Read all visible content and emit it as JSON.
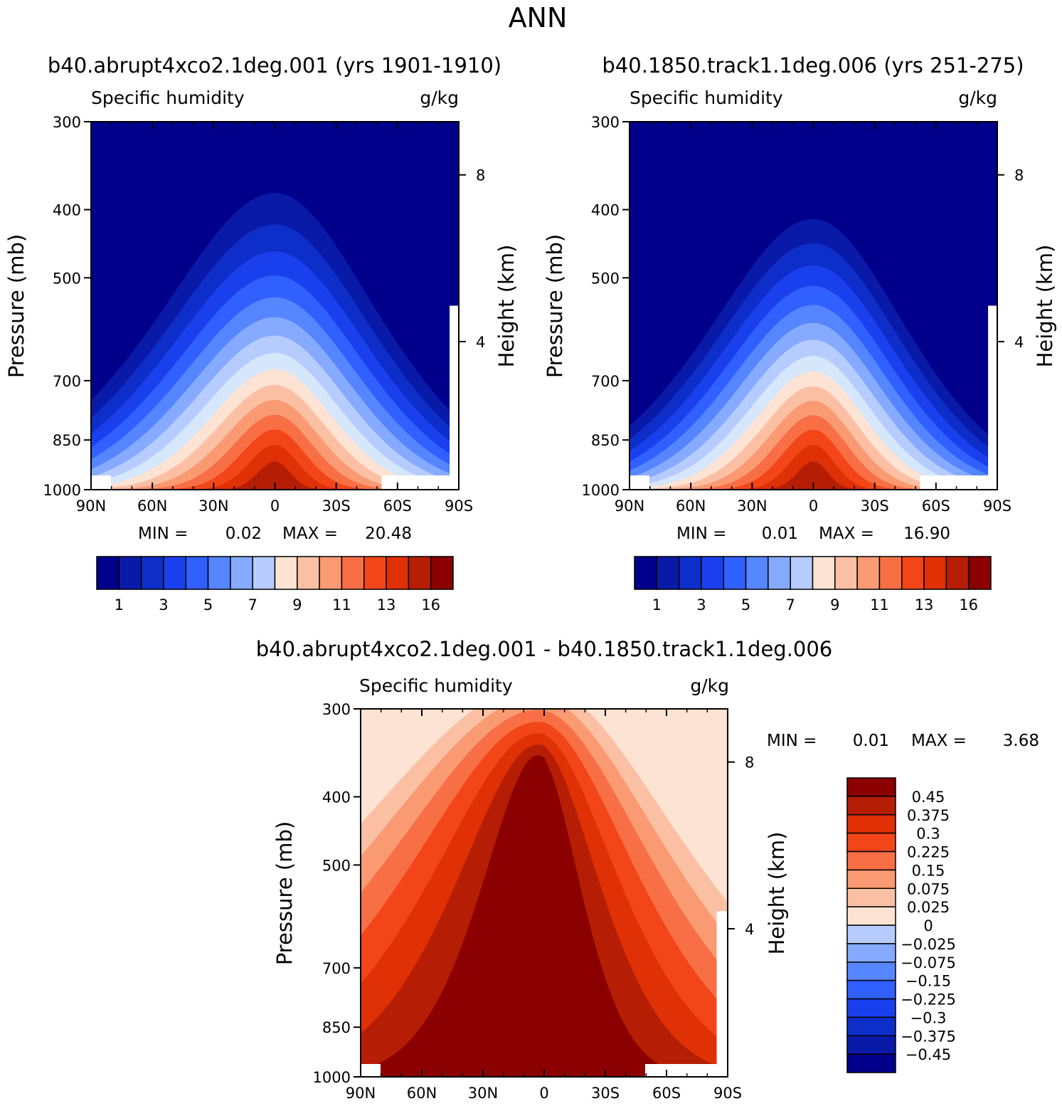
{
  "page_title": "ANN",
  "chart_data": [
    {
      "type": "heatmap",
      "subtype": "filled-contour",
      "title": "b40.abrupt4xco2.1deg.001 (yrs 1901-1910)",
      "subtitle_left": "Specific humidity",
      "subtitle_right": "g/kg",
      "xlabel": "",
      "ylabel": "Pressure (mb)",
      "ylabel_right": "Height (km)",
      "x_tick_labels": [
        "90N",
        "60N",
        "30N",
        "0",
        "30S",
        "60S",
        "90S"
      ],
      "x_range": [
        90,
        -90
      ],
      "y_tick_labels": [
        "300",
        "400",
        "500",
        "700",
        "850",
        "1000"
      ],
      "y_range": [
        300,
        1000
      ],
      "y_right_tick_labels": [
        "8",
        "4"
      ],
      "min_label": "MIN =",
      "min_value": "0.02",
      "max_label": "MAX =",
      "max_value": "20.48",
      "min": 0.02,
      "max": 20.48,
      "colorbar_orientation": "horizontal",
      "colorbar_labels": [
        "1",
        "3",
        "5",
        "7",
        "9",
        "11",
        "13",
        "16"
      ],
      "contour_bands": 16,
      "peak_latitude": 0,
      "peak_pressure": 1000
    },
    {
      "type": "heatmap",
      "subtype": "filled-contour",
      "title": "b40.1850.track1.1deg.006 (yrs 251-275)",
      "subtitle_left": "Specific humidity",
      "subtitle_right": "g/kg",
      "xlabel": "",
      "ylabel": "Pressure (mb)",
      "ylabel_right": "Height (km)",
      "x_tick_labels": [
        "90N",
        "60N",
        "30N",
        "0",
        "30S",
        "60S",
        "90S"
      ],
      "x_range": [
        90,
        -90
      ],
      "y_tick_labels": [
        "300",
        "400",
        "500",
        "700",
        "850",
        "1000"
      ],
      "y_range": [
        300,
        1000
      ],
      "y_right_tick_labels": [
        "8",
        "4"
      ],
      "min_label": "MIN =",
      "min_value": "0.01",
      "max_label": "MAX =",
      "max_value": "16.90",
      "min": 0.01,
      "max": 16.9,
      "colorbar_orientation": "horizontal",
      "colorbar_labels": [
        "1",
        "3",
        "5",
        "7",
        "9",
        "11",
        "13",
        "16"
      ],
      "contour_bands": 16,
      "peak_latitude": 0,
      "peak_pressure": 1000
    },
    {
      "type": "heatmap",
      "subtype": "filled-contour-difference",
      "title": "b40.abrupt4xco2.1deg.001 - b40.1850.track1.1deg.006",
      "subtitle_left": "Specific humidity",
      "subtitle_right": "g/kg",
      "xlabel": "",
      "ylabel": "Pressure (mb)",
      "ylabel_right": "Height (km)",
      "x_tick_labels": [
        "90N",
        "60N",
        "30N",
        "0",
        "30S",
        "60S",
        "90S"
      ],
      "x_range": [
        90,
        -90
      ],
      "y_tick_labels": [
        "300",
        "400",
        "500",
        "700",
        "850",
        "1000"
      ],
      "y_range": [
        300,
        1000
      ],
      "y_right_tick_labels": [
        "8",
        "4"
      ],
      "min_label": "MIN =",
      "min_value": "0.01",
      "max_label": "MAX =",
      "max_value": "3.68",
      "min": 0.01,
      "max": 3.68,
      "colorbar_orientation": "vertical",
      "colorbar_labels": [
        "0.45",
        "0.375",
        "0.3",
        "0.225",
        "0.15",
        "0.075",
        "0.025",
        "0",
        "−0.025",
        "−0.075",
        "−0.15",
        "−0.225",
        "−0.3",
        "−0.375",
        "−0.45"
      ],
      "contour_bands": 16
    }
  ],
  "colors": {
    "abs_scale": [
      "#00008b",
      "#0a1aa8",
      "#0d2ec9",
      "#1a40ee",
      "#3060ff",
      "#5585ff",
      "#86aaff",
      "#b6ccff",
      "#d6e6fb",
      "#fde3d3",
      "#fbc0a4",
      "#f99a72",
      "#f86f45",
      "#f24618",
      "#e03005",
      "#b51e05",
      "#8b0000"
    ],
    "diff_scale": [
      "#00008b",
      "#0a1aa8",
      "#0d2ec9",
      "#1a40ee",
      "#3060ff",
      "#5585ff",
      "#86aaff",
      "#b6ccff",
      "#d6e6fb",
      "#fde3d3",
      "#fbc0a4",
      "#f99a72",
      "#f86f45",
      "#f24618",
      "#e03005",
      "#b51e05",
      "#8b0000"
    ]
  }
}
